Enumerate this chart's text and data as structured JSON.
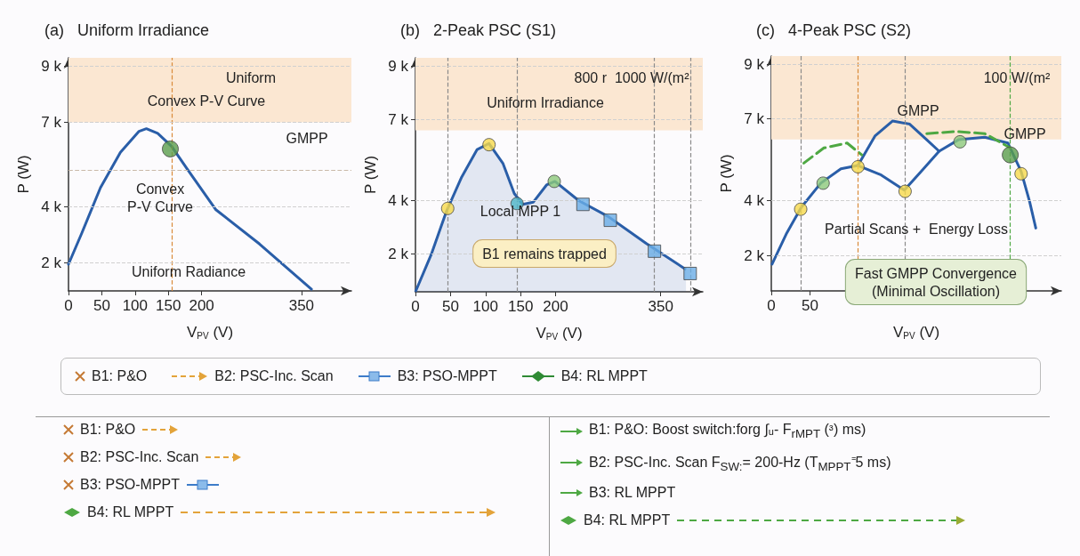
{
  "chart_data": [
    {
      "type": "line",
      "title": "(a)   Uniform Irradiance",
      "xlabel": "V$_{PV}$ (V)",
      "ylabel": "P (W)",
      "xlim": [
        0,
        425
      ],
      "xticks": [
        0,
        50,
        100,
        150,
        200,
        350
      ],
      "ylim": [
        1000,
        9300
      ],
      "yticks": [
        {
          "value": 2000,
          "label": "2 k"
        },
        {
          "value": 4000,
          "label": "4 k"
        },
        {
          "value": 7000,
          "label": "7 k"
        },
        {
          "value": 9000,
          "label": "9 k"
        }
      ],
      "grid": "y",
      "line_style": "solid",
      "series": [
        {
          "type": "line",
          "color": "#2a5ea8",
          "x": [
            0,
            20,
            48,
            78,
            106,
            117,
            134,
            155,
            178,
            221,
            287,
            365
          ],
          "values": [
            1950,
            3060,
            4675,
            5935,
            6685,
            6775,
            6610,
            6145,
            5350,
            3900,
            2670,
            1060
          ]
        },
        {
          "type": "scatter",
          "marker": "circle",
          "color": "#5a9e4b",
          "x": [
            153
          ],
          "values": [
            6055
          ]
        }
      ],
      "bands": [
        {
          "axis": "y",
          "from": 7000,
          "to": 9300,
          "color": "#fbe7d2"
        }
      ],
      "ref_lines": [
        {
          "axis": "x",
          "value": 156,
          "color": "#d98b3a",
          "line_style": "dashed"
        },
        {
          "axis": "y",
          "value": 5305,
          "color": "#c9b9a8",
          "line_style": "dashed"
        }
      ],
      "annotations": [
        "Uniform",
        "Convex P-V Curve",
        "GMPP",
        "Convex\nP-V Curve",
        "Uniform Radiance"
      ]
    },
    {
      "type": "area",
      "title": "(b)   2-Peak PSC (S1)",
      "xlabel": "V$_{PV}$ (V)",
      "ylabel": "P (W)",
      "xlim": [
        0,
        410
      ],
      "xticks": [
        0,
        50,
        100,
        150,
        200,
        350
      ],
      "ylim": [
        600,
        9300
      ],
      "yticks": [
        {
          "value": 2000,
          "label": "2 k"
        },
        {
          "value": 4000,
          "label": "4 k"
        },
        {
          "value": 7000,
          "label": "7 k"
        },
        {
          "value": 9000,
          "label": "9 k"
        }
      ],
      "grid": "y",
      "line_style": "solid",
      "series": [
        {
          "type": "area",
          "color": "#2a5ea8",
          "x": [
            0,
            23,
            44,
            66,
            88,
            105,
            125,
            141,
            153,
            168,
            187,
            199,
            233,
            275,
            329,
            386
          ],
          "values": [
            600,
            2020,
            3580,
            4870,
            5890,
            6115,
            5365,
            4255,
            3850,
            3930,
            4570,
            4705,
            3990,
            3400,
            2400,
            1430
          ]
        },
        {
          "type": "scatter",
          "marker": "circle",
          "color": "#f6d94a",
          "x": [
            46,
            105
          ],
          "values": [
            3700,
            6070
          ]
        },
        {
          "type": "scatter",
          "marker": "circle",
          "color": "#4fb7c8",
          "x": [
            145
          ],
          "values": [
            3880
          ]
        },
        {
          "type": "scatter",
          "marker": "circle",
          "color": "#8cc97a",
          "x": [
            198
          ],
          "values": [
            4705
          ]
        },
        {
          "type": "scatter",
          "marker": "square",
          "color": "#6aaee6",
          "x": [
            239,
            278,
            341,
            392
          ],
          "values": [
            3850,
            3260,
            2110,
            1280
          ]
        }
      ],
      "bands": [
        {
          "axis": "y",
          "from": 6600,
          "to": 9300,
          "color": "#fbe7d2"
        }
      ],
      "ref_lines": [
        {
          "axis": "x",
          "value": 46,
          "color": "#8a8a8a",
          "line_style": "dashed"
        },
        {
          "axis": "x",
          "value": 145,
          "color": "#8a8a8a",
          "line_style": "dashed"
        },
        {
          "axis": "x",
          "value": 341,
          "color": "#8a8a8a",
          "line_style": "dashed"
        },
        {
          "axis": "x",
          "value": 392,
          "color": "#8a8a8a",
          "line_style": "dashed"
        }
      ],
      "annotations": [
        "800 r  1000 W/(m²",
        "Uniform Irradiance",
        "Local MPP 1",
        "B1 remains trapped"
      ]
    },
    {
      "type": "line",
      "title": "(c)   4-Peak PSC (S2)",
      "xlabel": "V$_{PV}$ (V)",
      "ylabel": "P (W)",
      "xlim": [
        0,
        375
      ],
      "xticks": [
        0,
        50
      ],
      "ylim": [
        700,
        9300
      ],
      "yticks": [
        {
          "value": 2000,
          "label": "2 k"
        },
        {
          "value": 4000,
          "label": "4 k"
        },
        {
          "value": 7000,
          "label": "7 k"
        },
        {
          "value": 9000,
          "label": "9 k"
        }
      ],
      "grid": "y",
      "series": [
        {
          "type": "line",
          "line_style": "solid",
          "color": "#2a5ea8",
          "x": [
            1,
            20,
            39,
            64,
            90,
            112,
            142,
            172,
            194,
            217,
            242,
            276,
            306,
            323,
            334,
            342
          ],
          "values": [
            1680,
            2820,
            3770,
            4645,
            5170,
            5290,
            4945,
            4390,
            5080,
            5815,
            6235,
            6325,
            6115,
            5080,
            3970,
            3000
          ]
        },
        {
          "type": "line",
          "line_style": "solid",
          "color": "#2a5ea8",
          "x": [
            112,
            134,
            157,
            179,
            201,
            217
          ],
          "values": [
            5290,
            6370,
            6925,
            6805,
            6235,
            5815
          ]
        },
        {
          "type": "line",
          "line_style": "dashed",
          "color": "#4ea843",
          "x": [
            42,
            68,
            98,
            117
          ],
          "values": [
            5380,
            5935,
            6115,
            5680
          ]
        },
        {
          "type": "line",
          "line_style": "dashed",
          "color": "#4ea843",
          "x": [
            201,
            239,
            276,
            309
          ],
          "values": [
            6460,
            6535,
            6460,
            5935
          ]
        },
        {
          "type": "scatter",
          "marker": "circle",
          "color": "#f6d94a",
          "x": [
            38,
            112,
            173,
            323
          ],
          "values": [
            3690,
            5245,
            4345,
            4990
          ]
        },
        {
          "type": "scatter",
          "marker": "circle",
          "color": "#8cc97a",
          "x": [
            67,
            244
          ],
          "values": [
            4645,
            6160
          ]
        },
        {
          "type": "scatter",
          "marker": "circle",
          "color": "#5a9e4b",
          "x": [
            309
          ],
          "values": [
            5680
          ]
        }
      ],
      "bands": [
        {
          "axis": "y",
          "from": 6250,
          "to": 9300,
          "color": "#fbe7d2"
        }
      ],
      "ref_lines": [
        {
          "axis": "x",
          "value": 38,
          "color": "#8a8a8a",
          "line_style": "dashed"
        },
        {
          "axis": "x",
          "value": 112,
          "color": "#d98b3a",
          "line_style": "dashed"
        },
        {
          "axis": "x",
          "value": 173,
          "color": "#8a8a8a",
          "line_style": "dashed"
        },
        {
          "axis": "x",
          "value": 309,
          "color": "#4ea843",
          "line_style": "dashed"
        }
      ],
      "annotations": [
        "100 W/(m²",
        "GMPP",
        "GMPP",
        "Partial Scans +  Energy Loss",
        "Fast GMPP Convergence\n(Minimal Oscillation)"
      ]
    },
    {
      "type": "other",
      "annotations": [
        "B1: P&O",
        "B2: PSC-Inc. Scan",
        "B3: PSO-MPPT",
        "B4: RL MPPT"
      ]
    },
    {
      "type": "other",
      "annotations": [
        "B1: P&O",
        "B2: PSC-Inc. Scan",
        "B3: PSO-MPPT",
        "B4: RL MPPT"
      ]
    },
    {
      "type": "other",
      "annotations": [
        "B1: P&O:  Boost switch:forg ∫ᵤ- F$_{rMPT}$ (ᶟ) ms)",
        "B2: PSC-Inc. Scan  F$_{SW:}$= 200-Hz  (T$_{MPPT}$⁼5 ms)",
        "B3: RL MPPT",
        "B4: RL MPPT"
      ]
    }
  ]
}
